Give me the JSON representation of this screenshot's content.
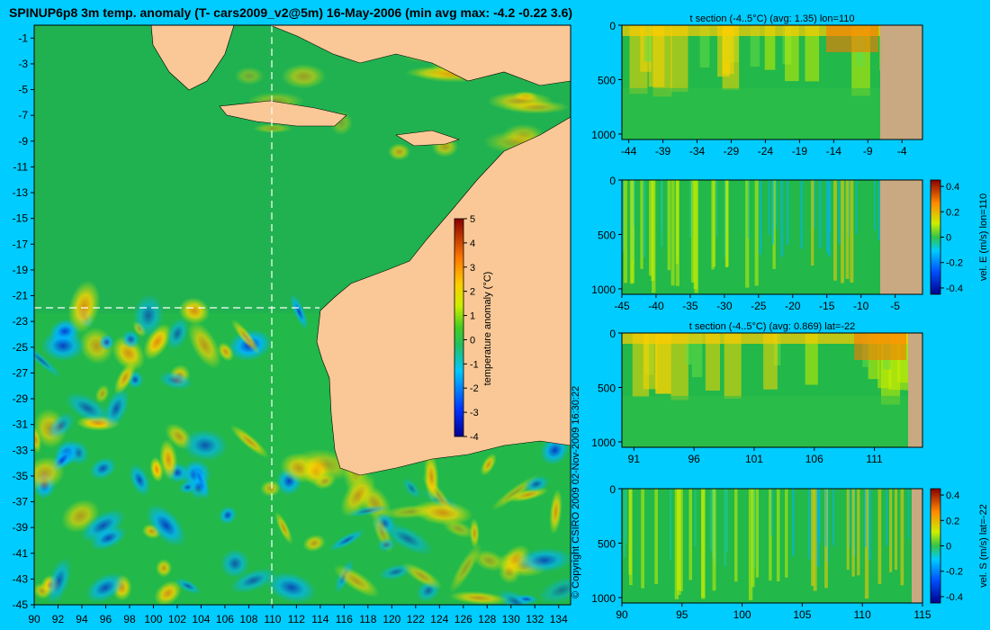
{
  "figure": {
    "title": "SPINUP6p8 3m temp. anomaly (T- cars2009_v2@5m) 16-May-2006 (min avg max: -4.2 -0.22 3.6)",
    "copyright": "© Copyright CSIRO 2009   02-Nov-2009 16:30:22",
    "colors": {
      "background": "#00ccff",
      "ocean": "#22b84a",
      "land": "#f9c896",
      "section_land": "#c8a982",
      "axis": "#000000",
      "crosshair": "#ffffff"
    }
  },
  "chart_data": [
    {
      "id": "map",
      "type": "heatmap",
      "title": "",
      "xlim": [
        90,
        135
      ],
      "ylim": [
        -45,
        0
      ],
      "xticks": [
        "90",
        "92",
        "94",
        "96",
        "98",
        "100",
        "102",
        "104",
        "106",
        "108",
        "110",
        "112",
        "114",
        "116",
        "118",
        "120",
        "122",
        "124",
        "126",
        "128",
        "130",
        "132",
        "134"
      ],
      "yticks": [
        "-1",
        "-3",
        "-5",
        "-7",
        "-9",
        "-11",
        "-13",
        "-15",
        "-17",
        "-19",
        "-21",
        "-23",
        "-25",
        "-27",
        "-29",
        "-31",
        "-33",
        "-35",
        "-37",
        "-39",
        "-41",
        "-43",
        "-45"
      ],
      "crosshair": {
        "lon": 110,
        "lat": -22
      },
      "colorbar": {
        "label": "temperature anomaly (°C)",
        "ticks": [
          "5",
          "4",
          "3",
          "2",
          "1",
          "0",
          "-1",
          "-2",
          "-3",
          "-4"
        ],
        "range": [
          -4,
          5
        ]
      }
    },
    {
      "id": "tsec-lon",
      "type": "heatmap",
      "title": "t section (-4..5°C) (avg: 1.35) lon=110",
      "xticks": [
        "-44",
        "-39",
        "-34",
        "-29",
        "-24",
        "-19",
        "-14",
        "-9",
        "-4"
      ],
      "yticks": [
        "0",
        "500",
        "1000"
      ],
      "xlim": [
        -45,
        -1
      ],
      "ylim": [
        1050,
        0
      ]
    },
    {
      "id": "vsec-lon",
      "type": "heatmap",
      "title": "",
      "xticks": [
        "-45",
        "-40",
        "-35",
        "-30",
        "-25",
        "-20",
        "-15",
        "-10",
        "-5"
      ],
      "yticks": [
        "0",
        "500",
        "1000"
      ],
      "xlim": [
        -45,
        -1
      ],
      "ylim": [
        1050,
        0
      ],
      "colorbar": {
        "label": "vel. E (m/s) lon=110",
        "ticks": [
          "0.4",
          "0.2",
          "0",
          "-0.2",
          "-0.4"
        ],
        "range": [
          -0.45,
          0.45
        ]
      }
    },
    {
      "id": "tsec-lat",
      "type": "heatmap",
      "title": "t section (-4..5°C) (avg: 0.869) lat=-22",
      "xticks": [
        "91",
        "96",
        "101",
        "106",
        "111"
      ],
      "yticks": [
        "0",
        "500",
        "1000"
      ],
      "xlim": [
        90,
        115
      ],
      "ylim": [
        1050,
        0
      ]
    },
    {
      "id": "vsec-lat",
      "type": "heatmap",
      "title": "",
      "xticks": [
        "90",
        "95",
        "100",
        "105",
        "110",
        "115"
      ],
      "yticks": [
        "0",
        "500",
        "1000"
      ],
      "xlim": [
        90,
        115
      ],
      "ylim": [
        1050,
        0
      ],
      "colorbar": {
        "label": "vel. S (m/s) lat=-22",
        "ticks": [
          "0.4",
          "0.2",
          "0",
          "-0.2",
          "-0.4"
        ],
        "range": [
          -0.45,
          0.45
        ]
      }
    }
  ]
}
